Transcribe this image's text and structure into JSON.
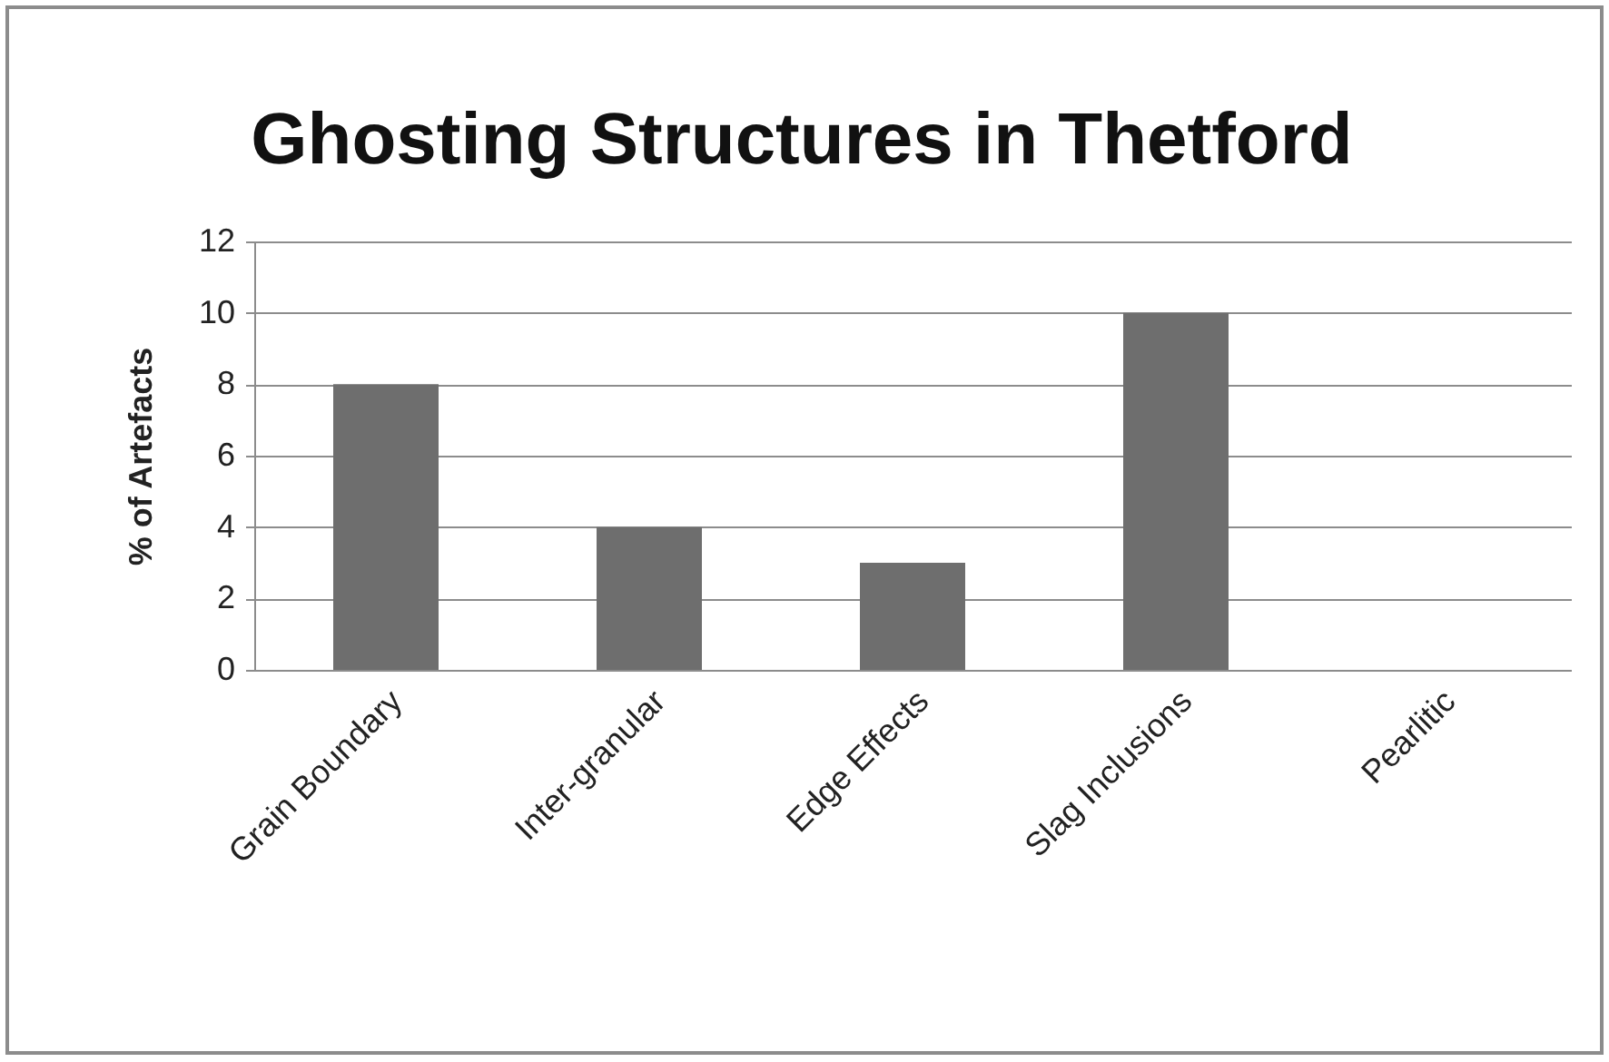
{
  "chart_data": {
    "type": "bar",
    "title": "Ghosting Structures in Thetford",
    "ylabel": "% of Artefacts",
    "categories": [
      "Grain Boundary",
      "Inter-granular",
      "Edge Effects",
      "Slag Inclusions",
      "Pearlitic"
    ],
    "values": [
      8,
      4,
      3,
      10,
      0
    ],
    "color": "#6e6e6e",
    "ylim": [
      0,
      12
    ],
    "yticks": [
      0,
      2,
      4,
      6,
      8,
      10,
      12
    ],
    "grid": "y"
  }
}
